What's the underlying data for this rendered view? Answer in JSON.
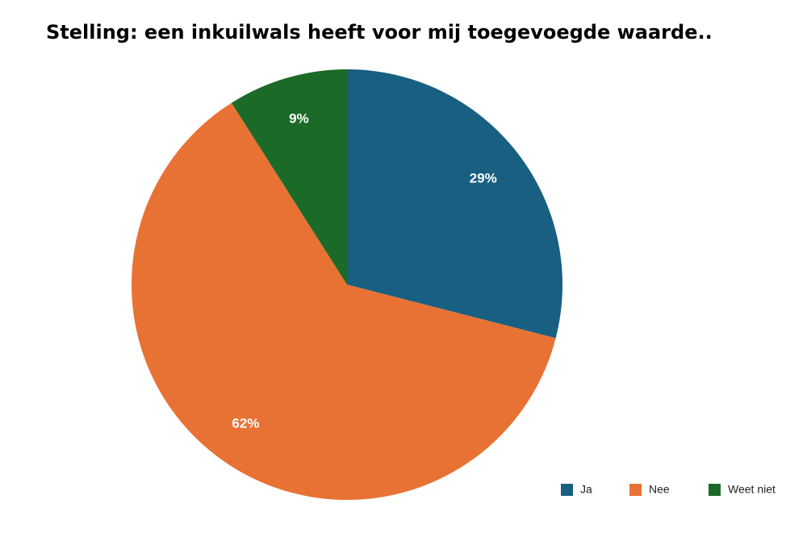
{
  "chart_data": {
    "type": "pie",
    "title": "Stelling: een inkuilwals heeft voor mij toegevoegde waarde..",
    "categories": [
      "Ja",
      "Nee",
      "Weet niet"
    ],
    "values": [
      29,
      62,
      9
    ],
    "value_labels": [
      "29%",
      "62%",
      "9%"
    ],
    "colors": [
      "#185f82",
      "#e87234",
      "#1b6a27"
    ],
    "legend": "bottom-right"
  }
}
